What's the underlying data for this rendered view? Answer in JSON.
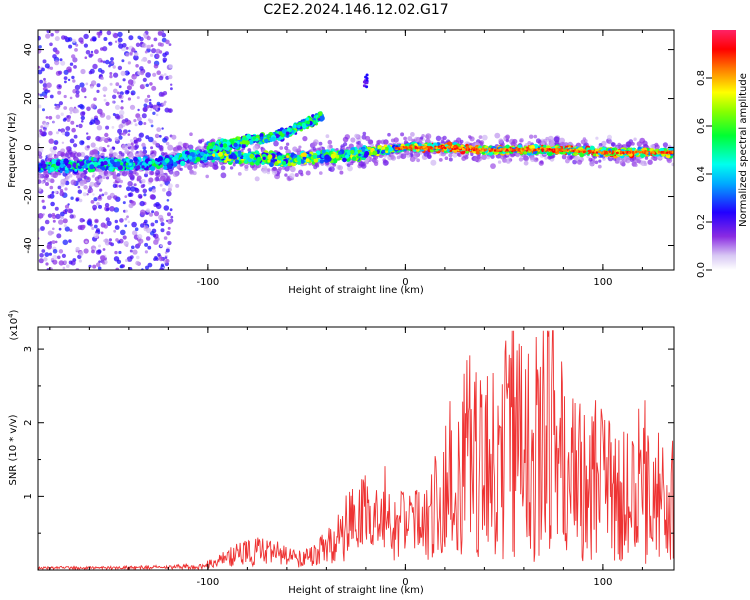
{
  "chart_data": [
    {
      "type": "heatmap",
      "title": "C2E2.2024.146.12.02.G17",
      "xlabel": "Height of straight line (km)",
      "ylabel": "Frequency (Hz)",
      "xlim": [
        -186,
        136
      ],
      "ylim": [
        -50,
        48
      ],
      "xticks": [
        -100,
        0,
        100
      ],
      "yticks": [
        -40,
        -20,
        0,
        20,
        40
      ],
      "grid": false,
      "colorbar": {
        "label": "Normalized spectral amplitude",
        "range": [
          0,
          1
        ],
        "ticks": [
          "0.0",
          "0.2",
          "0.4",
          "0.6",
          "0.8"
        ]
      },
      "ridge": {
        "x": [
          -186,
          -160,
          -140,
          -120,
          -110,
          -100,
          -80,
          -60,
          -45,
          -30,
          -20,
          -10,
          0,
          20,
          40,
          60,
          80,
          100,
          120,
          136
        ],
        "frequency": [
          -8,
          -7,
          -7,
          -6,
          -4,
          -3,
          -4,
          -5,
          -4,
          -3,
          -2,
          -1,
          0,
          0,
          -1,
          -1,
          -1,
          -2,
          -2,
          -2
        ]
      },
      "upper_branch": {
        "x": [
          -100,
          -90,
          -80,
          -70,
          -60,
          -50,
          -42
        ],
        "frequency": [
          0,
          1,
          3,
          4,
          6,
          10,
          13
        ]
      },
      "isolated_feature": {
        "x": -20,
        "frequency": [
          24,
          30
        ]
      }
    },
    {
      "type": "line",
      "xlabel": "Height of straight line (km)",
      "ylabel": "SNR (10 * v/v)",
      "scale_label": "(x10",
      "scale_exponent": "4",
      "scale_suffix": ")",
      "xlim": [
        -186,
        136
      ],
      "ylim": [
        0,
        3.3
      ],
      "xticks": [
        -100,
        0,
        100
      ],
      "yticks": [
        1,
        2,
        3
      ],
      "grid": false,
      "color": "#ee3333",
      "series": [
        {
          "x": [
            -186,
            -150,
            -120,
            -105,
            -95,
            -85,
            -75,
            -65,
            -55,
            -45,
            -35,
            -30,
            -25,
            -20,
            -15,
            -10,
            -5,
            0,
            5,
            10,
            15,
            20,
            25,
            30,
            35,
            40,
            45,
            50,
            55,
            60,
            65,
            70,
            75,
            80,
            85,
            90,
            95,
            100,
            105,
            110,
            115,
            120,
            125,
            130,
            136
          ],
          "values": [
            0.03,
            0.03,
            0.04,
            0.05,
            0.15,
            0.3,
            0.35,
            0.3,
            0.2,
            0.3,
            0.55,
            0.8,
            0.9,
            1.0,
            0.85,
            1.2,
            0.7,
            1.0,
            0.9,
            0.8,
            1.2,
            1.4,
            1.5,
            2.0,
            1.7,
            1.8,
            2.0,
            1.9,
            2.2,
            2.0,
            1.9,
            2.3,
            2.1,
            1.7,
            1.6,
            1.8,
            1.6,
            1.4,
            1.5,
            1.2,
            1.2,
            1.5,
            1.3,
            1.2,
            1.5
          ]
        }
      ]
    }
  ]
}
